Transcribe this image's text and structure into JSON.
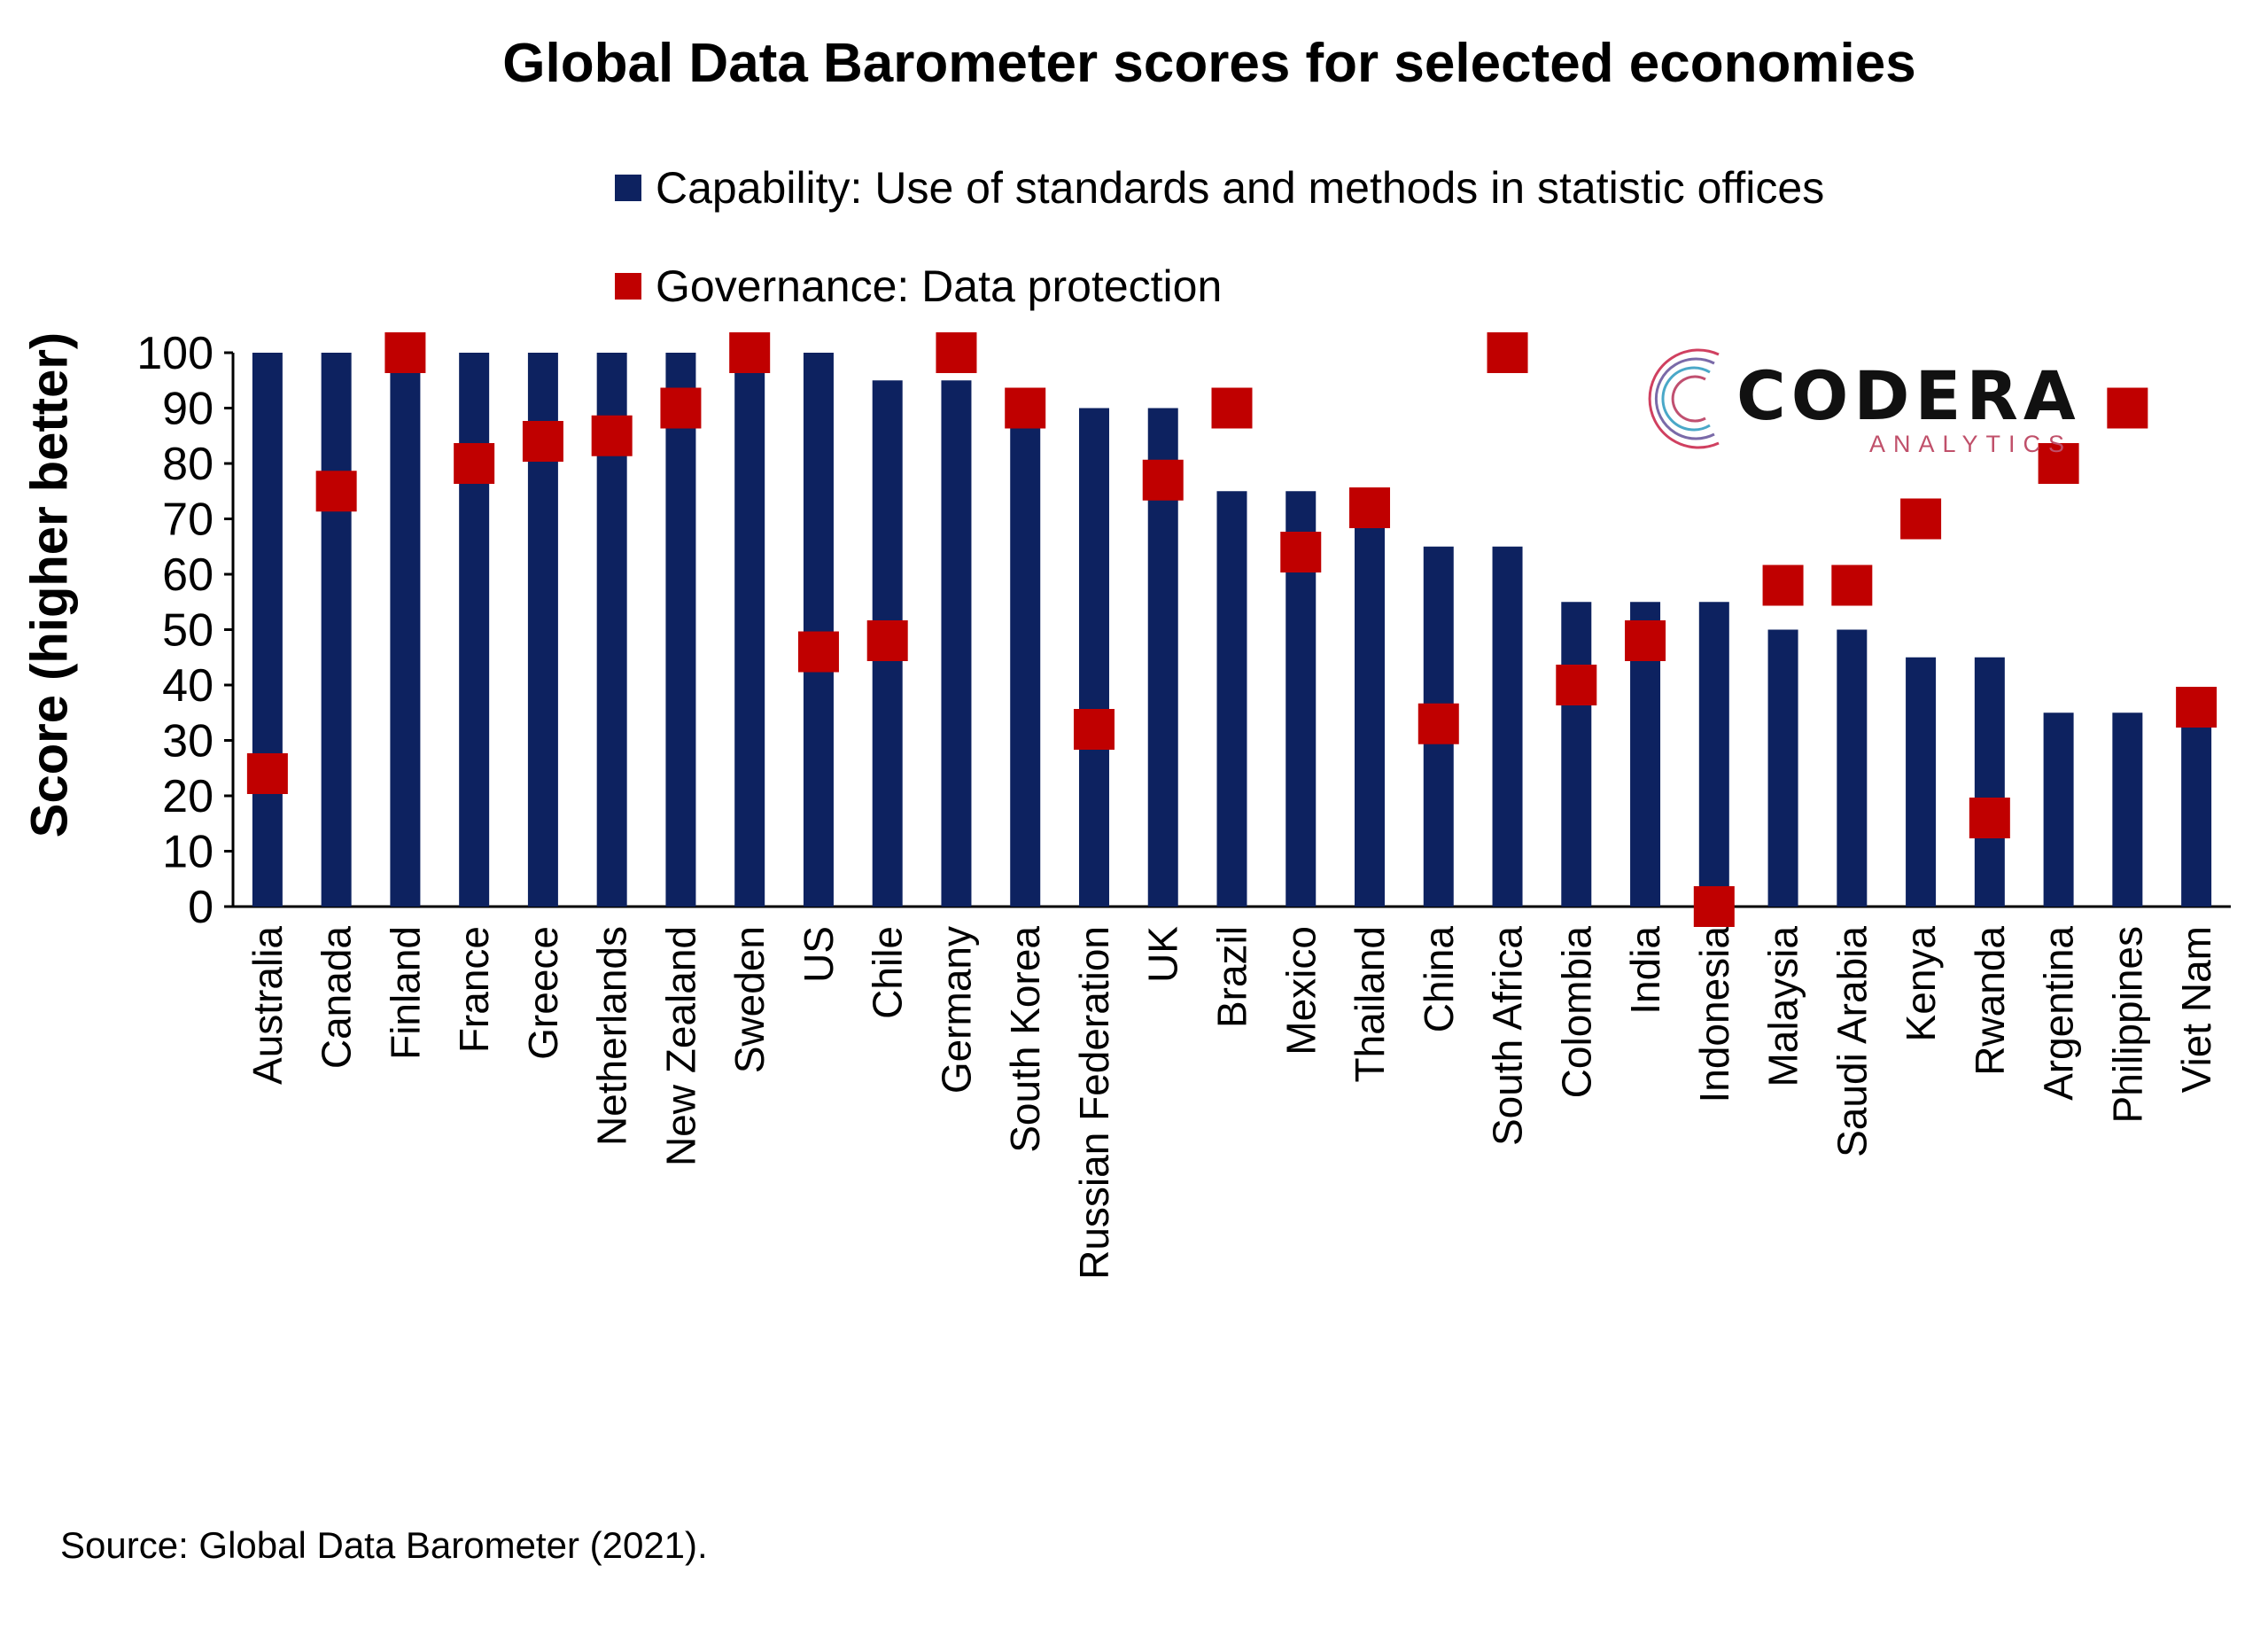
{
  "chart_data": {
    "type": "bar",
    "title": "Global Data Barometer scores for selected economies",
    "ylabel": "Score (higher better)",
    "xlabel": "",
    "ylim": [
      0,
      100
    ],
    "yticks": [
      0,
      10,
      20,
      30,
      40,
      50,
      60,
      70,
      80,
      90,
      100
    ],
    "grid": false,
    "legend_position": "top",
    "categories": [
      "Australia",
      "Canada",
      "Finland",
      "France",
      "Greece",
      "Netherlands",
      "New Zealand",
      "Sweden",
      "US",
      "Chile",
      "Germany",
      "South Korea",
      "Russian Federation",
      "UK",
      "Brazil",
      "Mexico",
      "Thailand",
      "China",
      "South Africa",
      "Colombia",
      "India",
      "Indonesia",
      "Malaysia",
      "Saudi Arabia",
      "Kenya",
      "Rwanda",
      "Argentina",
      "Philippines",
      "Viet Nam"
    ],
    "series": [
      {
        "name": "Capability: Use of standards and methods in statistic offices",
        "type": "bar",
        "color": "#0d2260",
        "values": [
          100,
          100,
          100,
          100,
          100,
          100,
          100,
          100,
          100,
          95,
          95,
          90,
          90,
          90,
          75,
          75,
          70,
          65,
          65,
          55,
          55,
          55,
          50,
          50,
          45,
          45,
          35,
          35,
          35
        ]
      },
      {
        "name": "Governance: Data protection",
        "type": "marker",
        "color": "#c00000",
        "values": [
          24,
          75,
          100,
          80,
          84,
          85,
          90,
          100,
          46,
          48,
          100,
          90,
          32,
          77,
          90,
          64,
          72,
          33,
          100,
          40,
          48,
          0,
          58,
          58,
          70,
          16,
          80,
          90,
          36
        ]
      }
    ]
  },
  "logo": {
    "word": "CODERA",
    "sub": "ANALYTICS"
  },
  "source": "Source: Global Data Barometer (2021)."
}
